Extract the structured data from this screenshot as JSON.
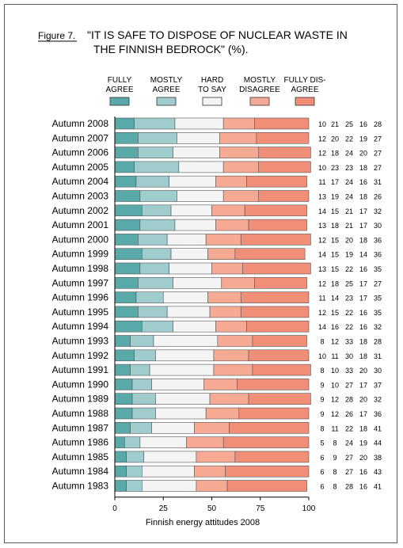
{
  "chart_data": {
    "type": "bar",
    "stacked": true,
    "orientation": "horizontal",
    "figure_label": "Figure 7.",
    "title_lines": [
      "\"IT IS SAFE TO DISPOSE OF NUCLEAR WASTE IN",
      "THE FINNISH BEDROCK\" (%)."
    ],
    "xlabel": "Finnish energy attitudes 2008",
    "xlim": [
      0,
      100
    ],
    "xticks": [
      0,
      25,
      50,
      75,
      100
    ],
    "grid": false,
    "legend_position": "top",
    "categories": [
      "Autumn 2008",
      "Autumn 2007",
      "Autumn 2006",
      "Autumn 2005",
      "Autumn 2004",
      "Autumn 2003",
      "Autumn 2002",
      "Autumn 2001",
      "Autumn 2000",
      "Autumn 1999",
      "Autumn 1998",
      "Autumn 1997",
      "Autumn 1996",
      "Autumn 1995",
      "Autumn 1994",
      "Autumn 1993",
      "Autumn 1992",
      "Autumn 1991",
      "Autumn 1990",
      "Autumn 1989",
      "Autumn 1988",
      "Autumn 1987",
      "Autumn 1986",
      "Autumn 1985",
      "Autumn 1984",
      "Autumn 1983"
    ],
    "series": [
      {
        "legend_lines": [
          "FULLY",
          "AGREE"
        ],
        "color": "#5aa9a9",
        "values": [
          10,
          12,
          12,
          10,
          11,
          13,
          14,
          13,
          12,
          14,
          13,
          12,
          11,
          12,
          14,
          8,
          10,
          8,
          9,
          9,
          9,
          8,
          5,
          6,
          6,
          6
        ]
      },
      {
        "legend_lines": [
          "MOSTLY",
          "AGREE"
        ],
        "color": "#9fcccc",
        "values": [
          21,
          20,
          18,
          23,
          17,
          19,
          15,
          18,
          15,
          15,
          15,
          18,
          14,
          15,
          16,
          12,
          11,
          10,
          10,
          12,
          12,
          11,
          8,
          9,
          8,
          8
        ]
      },
      {
        "legend_lines": [
          "HARD",
          "TO SAY"
        ],
        "color": "#f4f4f4",
        "values": [
          25,
          22,
          24,
          23,
          24,
          24,
          21,
          21,
          20,
          19,
          22,
          25,
          23,
          22,
          22,
          33,
          30,
          33,
          27,
          28,
          26,
          22,
          24,
          27,
          27,
          28
        ]
      },
      {
        "legend_lines": [
          "MOSTLY",
          "DISAGREE"
        ],
        "color": "#f6aa94",
        "values": [
          16,
          19,
          20,
          18,
          16,
          18,
          17,
          17,
          18,
          14,
          16,
          17,
          17,
          16,
          16,
          18,
          18,
          20,
          17,
          20,
          17,
          18,
          19,
          20,
          16,
          16
        ]
      },
      {
        "legend_lines": [
          "FULLY DIS-",
          "AGREE"
        ],
        "color": "#f08e78",
        "values": [
          28,
          27,
          27,
          27,
          31,
          26,
          32,
          30,
          36,
          36,
          35,
          27,
          35,
          35,
          32,
          28,
          31,
          30,
          37,
          32,
          36,
          41,
          44,
          38,
          43,
          41
        ]
      }
    ]
  }
}
